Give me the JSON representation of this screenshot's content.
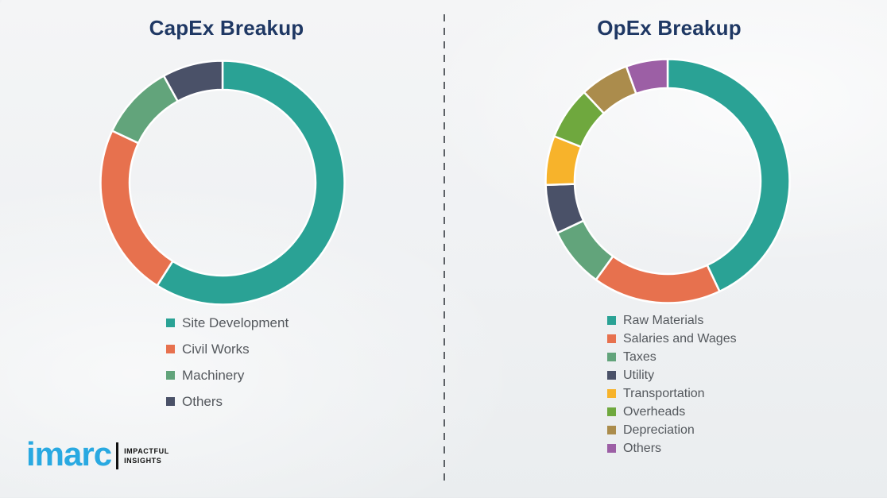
{
  "style": {
    "title_color": "#1f3864",
    "legend_text_color": "#54585d",
    "divider_color": "#5c6065",
    "segment_gap_color": "#ffffff",
    "background_color": "#f0f2f4"
  },
  "chart_data": [
    {
      "type": "pie",
      "subtype": "donut",
      "title": "CapEx Breakup",
      "categories": [
        "Site Development",
        "Civil Works",
        "Machinery",
        "Others"
      ],
      "values": [
        59,
        23,
        10,
        8
      ],
      "colors": [
        "#2aa295",
        "#e7714e",
        "#62a47b",
        "#4a5168"
      ],
      "start_angle_deg": 0,
      "clockwise": true,
      "legend_position": "bottom",
      "data_labels": false
    },
    {
      "type": "pie",
      "subtype": "donut",
      "title": "OpEx Breakup",
      "categories": [
        "Raw Materials",
        "Salaries and Wages",
        "Taxes",
        "Utility",
        "Transportation",
        "Overheads",
        "Depreciation",
        "Others"
      ],
      "values": [
        43,
        17,
        8,
        6.5,
        6.5,
        7,
        6.5,
        5.5
      ],
      "colors": [
        "#2aa295",
        "#e7714e",
        "#62a47b",
        "#4a5168",
        "#f7b32b",
        "#6fa83e",
        "#ab8c4c",
        "#9c5fa5"
      ],
      "start_angle_deg": 0,
      "clockwise": true,
      "legend_position": "bottom",
      "data_labels": false
    }
  ],
  "branding": {
    "logo_text": "imarc",
    "tagline_line1": "IMPACTFUL",
    "tagline_line2": "INSIGHTS",
    "logo_color": "#29a9e1"
  }
}
